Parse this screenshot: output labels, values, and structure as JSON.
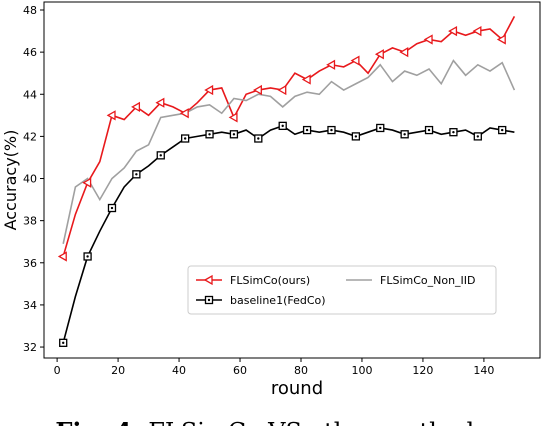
{
  "chart_data": {
    "type": "line",
    "xlabel": "round",
    "ylabel": "Accuracy(%)",
    "caption_label": "Fig. 4:",
    "caption": "FLSimCo VS other methods",
    "x": [
      2,
      6,
      10,
      14,
      18,
      22,
      26,
      30,
      34,
      38,
      42,
      46,
      50,
      54,
      58,
      62,
      66,
      70,
      74,
      78,
      82,
      86,
      90,
      94,
      98,
      102,
      106,
      110,
      114,
      118,
      122,
      126,
      130,
      134,
      138,
      142,
      146,
      150
    ],
    "series": [
      {
        "name": "FLSimCo(ours)",
        "color": "#e8191c",
        "marker": "triangle-left",
        "values": [
          36.3,
          38.3,
          39.8,
          40.8,
          43.0,
          42.8,
          43.4,
          43.0,
          43.6,
          43.4,
          43.1,
          43.6,
          44.2,
          44.3,
          42.9,
          44.0,
          44.2,
          44.3,
          44.2,
          45.0,
          44.7,
          45.1,
          45.4,
          45.3,
          45.6,
          45.0,
          45.9,
          46.2,
          46.0,
          46.4,
          46.6,
          46.5,
          47.0,
          46.8,
          47.0,
          47.1,
          46.6,
          47.7
        ]
      },
      {
        "name": "baseline1(FedCo)",
        "color": "#000000",
        "marker": "square",
        "values": [
          32.2,
          34.4,
          36.3,
          37.5,
          38.6,
          39.6,
          40.2,
          40.6,
          41.1,
          41.5,
          41.9,
          42.0,
          42.1,
          42.2,
          42.1,
          42.3,
          41.9,
          42.3,
          42.5,
          42.1,
          42.3,
          42.2,
          42.3,
          42.2,
          42.0,
          42.2,
          42.4,
          42.3,
          42.1,
          42.2,
          42.3,
          42.1,
          42.2,
          42.3,
          42.0,
          42.4,
          42.3,
          42.2
        ]
      },
      {
        "name": "FLSimCo_Non_IID",
        "color": "#a0a0a0",
        "marker": null,
        "values": [
          36.9,
          39.6,
          40.0,
          39.0,
          40.0,
          40.5,
          41.3,
          41.6,
          42.9,
          43.0,
          43.1,
          43.4,
          43.5,
          43.1,
          43.8,
          43.7,
          44.0,
          43.9,
          43.4,
          43.9,
          44.1,
          44.0,
          44.6,
          44.2,
          44.5,
          44.8,
          45.4,
          44.6,
          45.1,
          44.9,
          45.2,
          44.5,
          45.6,
          44.9,
          45.4,
          45.1,
          45.5,
          44.2
        ]
      }
    ],
    "marker_every": 2,
    "xlim": [
      -4.3,
      158.4
    ],
    "ylim": [
      31.48,
      48.38
    ],
    "xticks": [
      0,
      20,
      40,
      60,
      80,
      100,
      120,
      140
    ],
    "yticks": [
      32,
      34,
      36,
      38,
      40,
      42,
      44,
      46,
      48
    ],
    "legend": "lower center",
    "legend_columns": 2
  }
}
